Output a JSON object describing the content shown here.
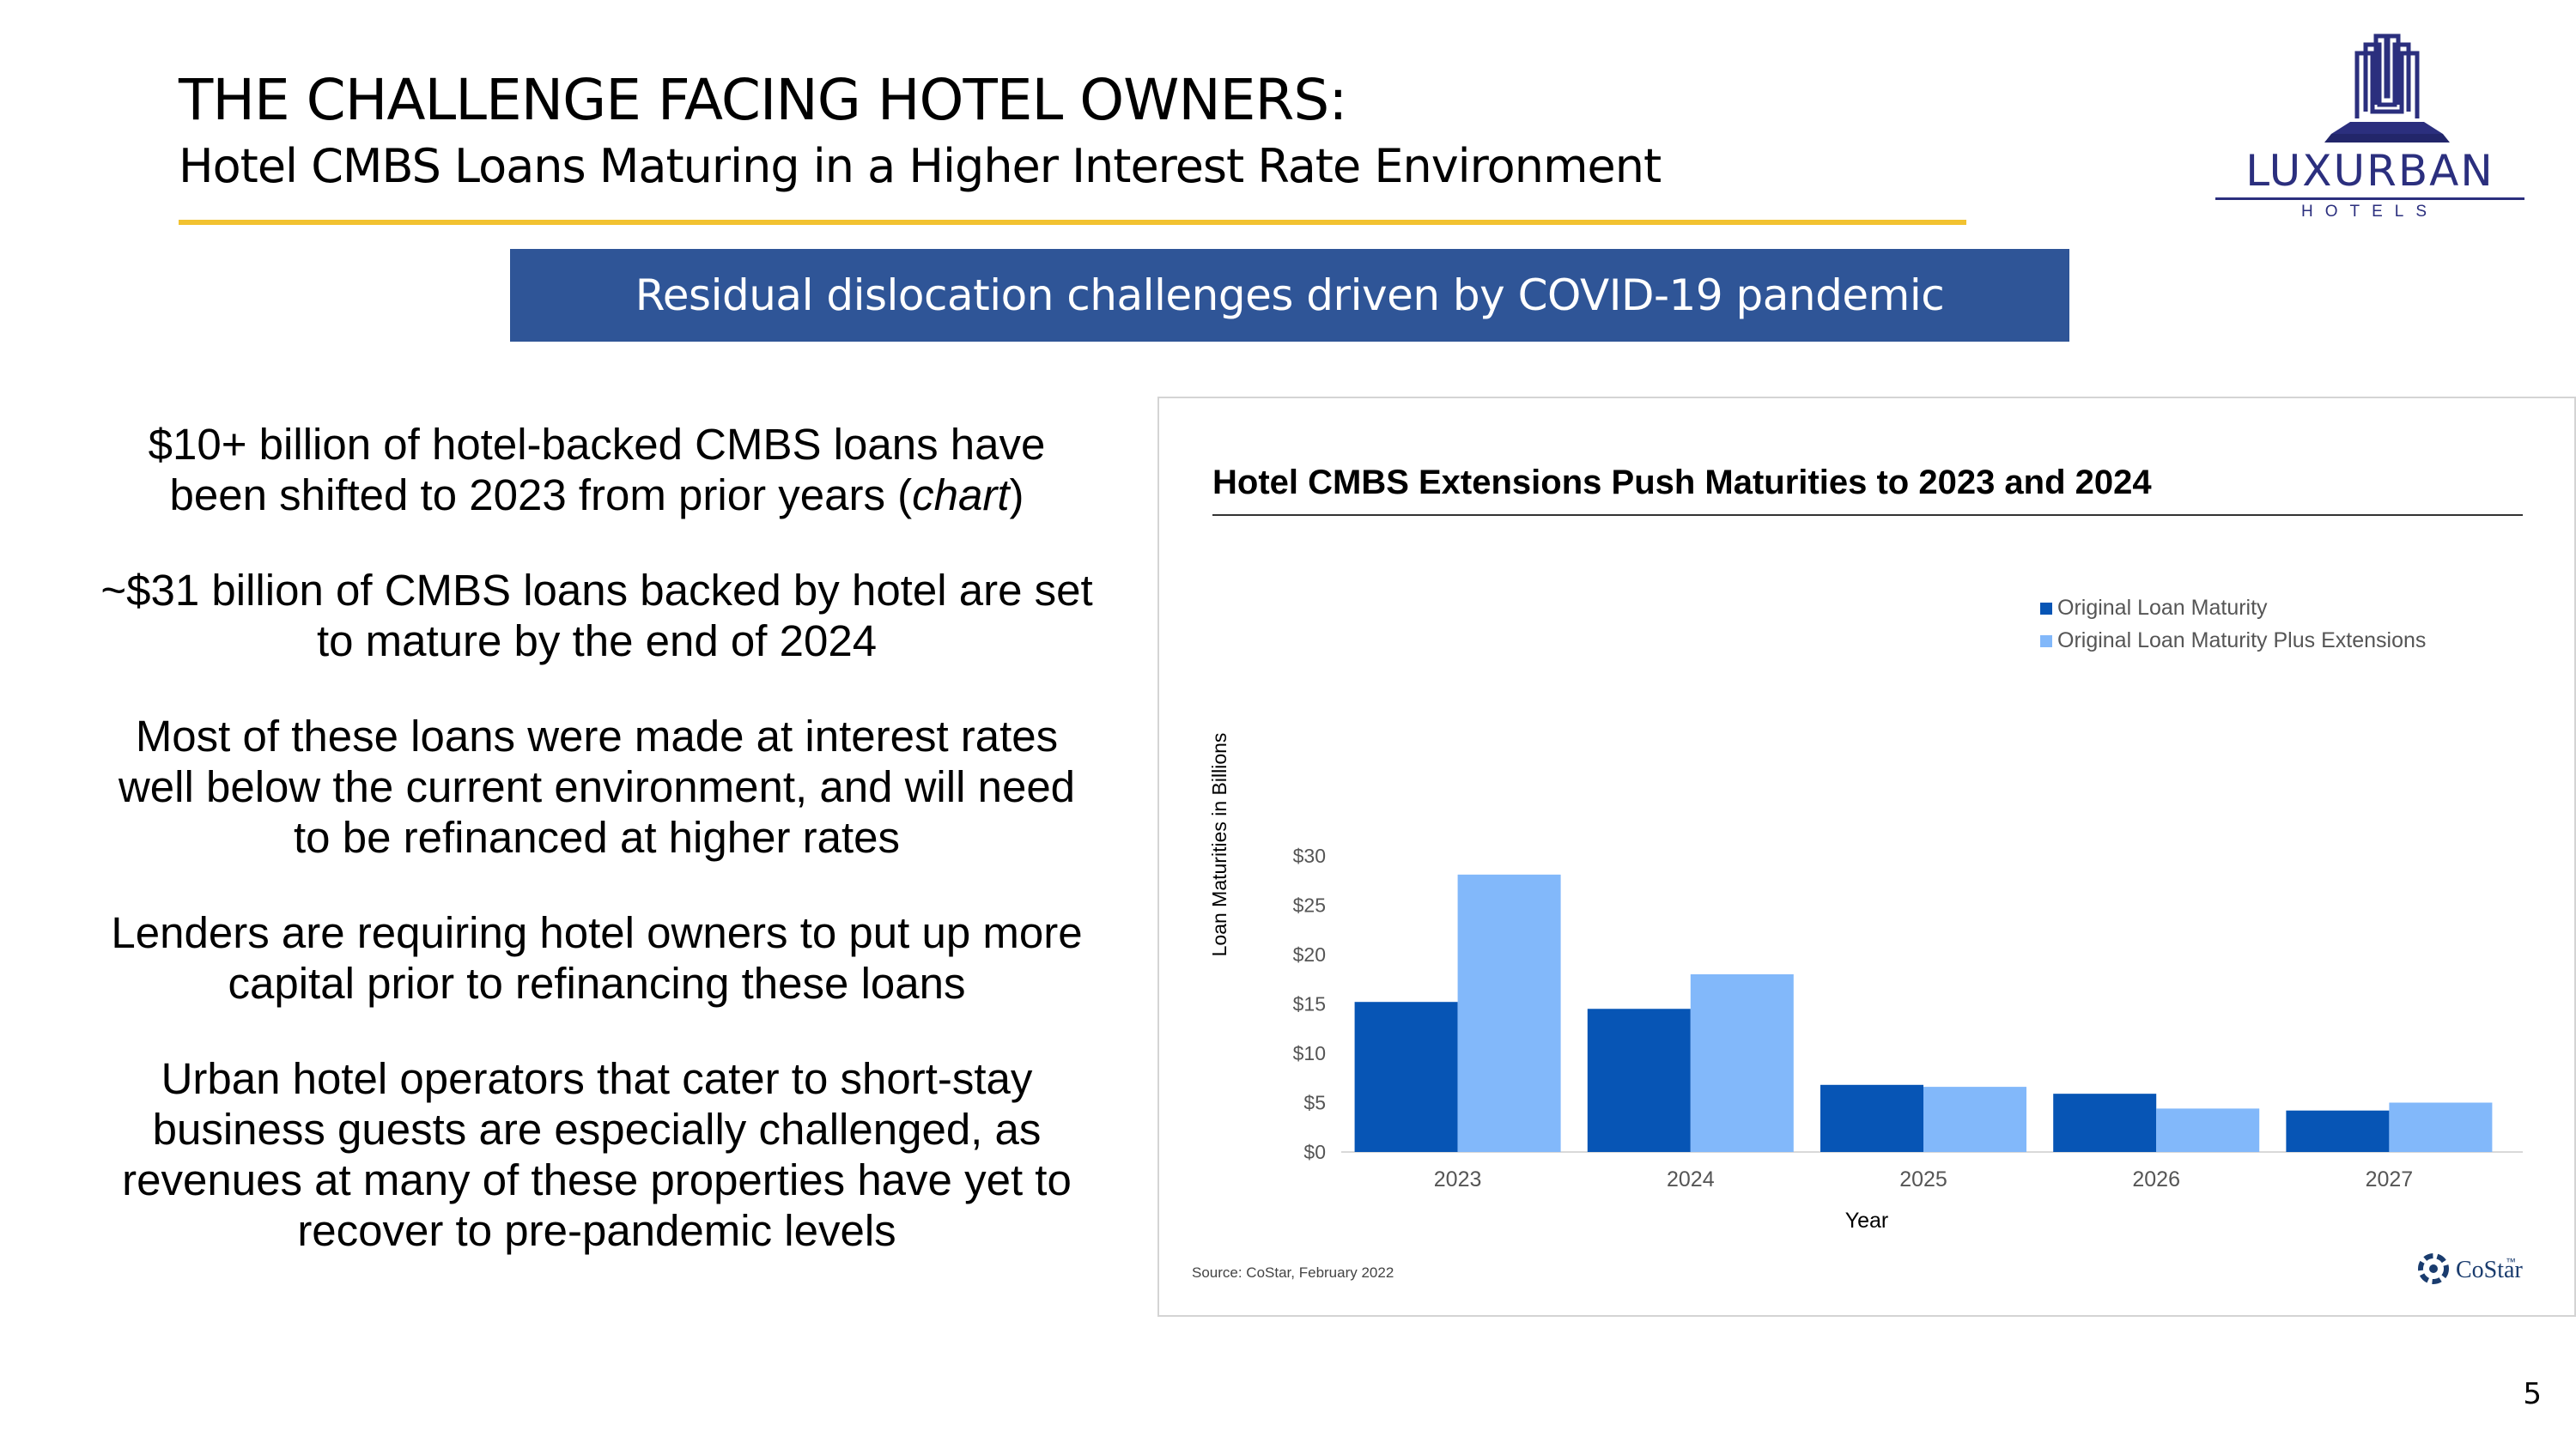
{
  "slide": {
    "title": "THE CHALLENGE FACING HOTEL OWNERS:",
    "subtitle": "Hotel CMBS Loans Maturing in a Higher Interest Rate Environment",
    "banner": "Residual dislocation challenges driven by COVID-19 pandemic",
    "page_number": "5"
  },
  "logo": {
    "wordmark": "LUXURBAN",
    "tagline": "HOTELS",
    "color": "#2b2f7e"
  },
  "bullets": [
    {
      "pre": "$10+ billion of hotel-backed CMBS loans have been shifted to 2023 from prior years (",
      "emph": "chart",
      "post": ")"
    },
    {
      "pre": "~$31 billion of CMBS loans backed by hotel are set to mature by the end of 2024",
      "emph": "",
      "post": ""
    },
    {
      "pre": "Most of these loans were made at interest rates well below the current environment, and will need to be refinanced at higher rates",
      "emph": "",
      "post": ""
    },
    {
      "pre": "Lenders are requiring hotel owners to put up more capital prior to refinancing these loans",
      "emph": "",
      "post": ""
    },
    {
      "pre": "Urban hotel operators that cater to short-stay business guests are especially challenged, as revenues at many of these properties have yet to recover to pre-pandemic levels",
      "emph": "",
      "post": ""
    }
  ],
  "chart_data": {
    "type": "bar",
    "title": "Hotel CMBS Extensions Push Maturities to 2023 and 2024",
    "xlabel": "Year",
    "ylabel": "Loan Maturities in Billions",
    "categories": [
      "2023",
      "2024",
      "2025",
      "2026",
      "2027"
    ],
    "series": [
      {
        "name": "Original Loan Maturity",
        "color": "#0755b5",
        "values": [
          15.2,
          14.5,
          6.8,
          5.9,
          4.2
        ]
      },
      {
        "name": "Original Loan Maturity Plus Extensions",
        "color": "#82b8fa",
        "values": [
          28.1,
          18.0,
          6.6,
          4.4,
          5.0
        ]
      }
    ],
    "ylim": [
      0,
      30
    ],
    "yticks": [
      0,
      5,
      10,
      15,
      20,
      25,
      30
    ],
    "ytick_labels": [
      "$0",
      "$5",
      "$10",
      "$15",
      "$20",
      "$25",
      "$30"
    ],
    "grid": false,
    "legend": "top-right",
    "source": "Source: CoStar, February 2022",
    "brand": "CoStar",
    "brand_mark": "™",
    "brand_color": "#1a3c6e"
  }
}
